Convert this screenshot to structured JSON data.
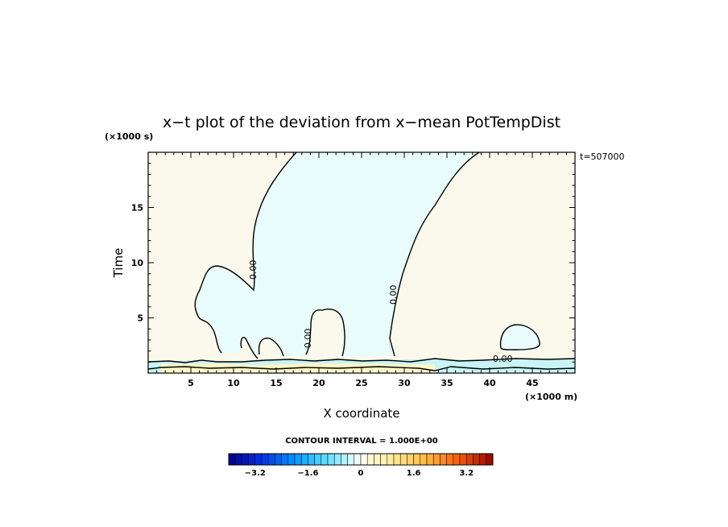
{
  "chart_data": {
    "type": "heatmap",
    "title": "x−t plot of the deviation from x−mean PotTempDist",
    "xlabel": "X coordinate",
    "ylabel": "Time",
    "x_unit": "(×1000 m)",
    "y_unit": "(×1000 s)",
    "xlim": [
      0,
      50
    ],
    "ylim": [
      0,
      20
    ],
    "x_ticks": [
      "5",
      "10",
      "15",
      "20",
      "25",
      "30",
      "35",
      "40",
      "45"
    ],
    "y_ticks": [
      "5",
      "10",
      "15"
    ],
    "time_label": "t=507000",
    "contour_interval_label": "CONTOUR INTERVAL = 1.000E+00",
    "contour_labels": [
      "0.00",
      "0.00",
      "0.00",
      "0.00"
    ],
    "regions": {
      "negative_fill": "#e8fcfc",
      "positive_fill": "#fbf9ec",
      "band_negative": "#c8f4f6",
      "band_positive": "#fdf6c6"
    },
    "colorbar": {
      "range": [
        -4,
        4
      ],
      "step": 0.2,
      "tick_labels": [
        "−3.2",
        "−1.6",
        "0",
        "1.6",
        "3.2"
      ],
      "tick_values": [
        -3.2,
        -1.6,
        0,
        1.6,
        3.2
      ]
    }
  }
}
